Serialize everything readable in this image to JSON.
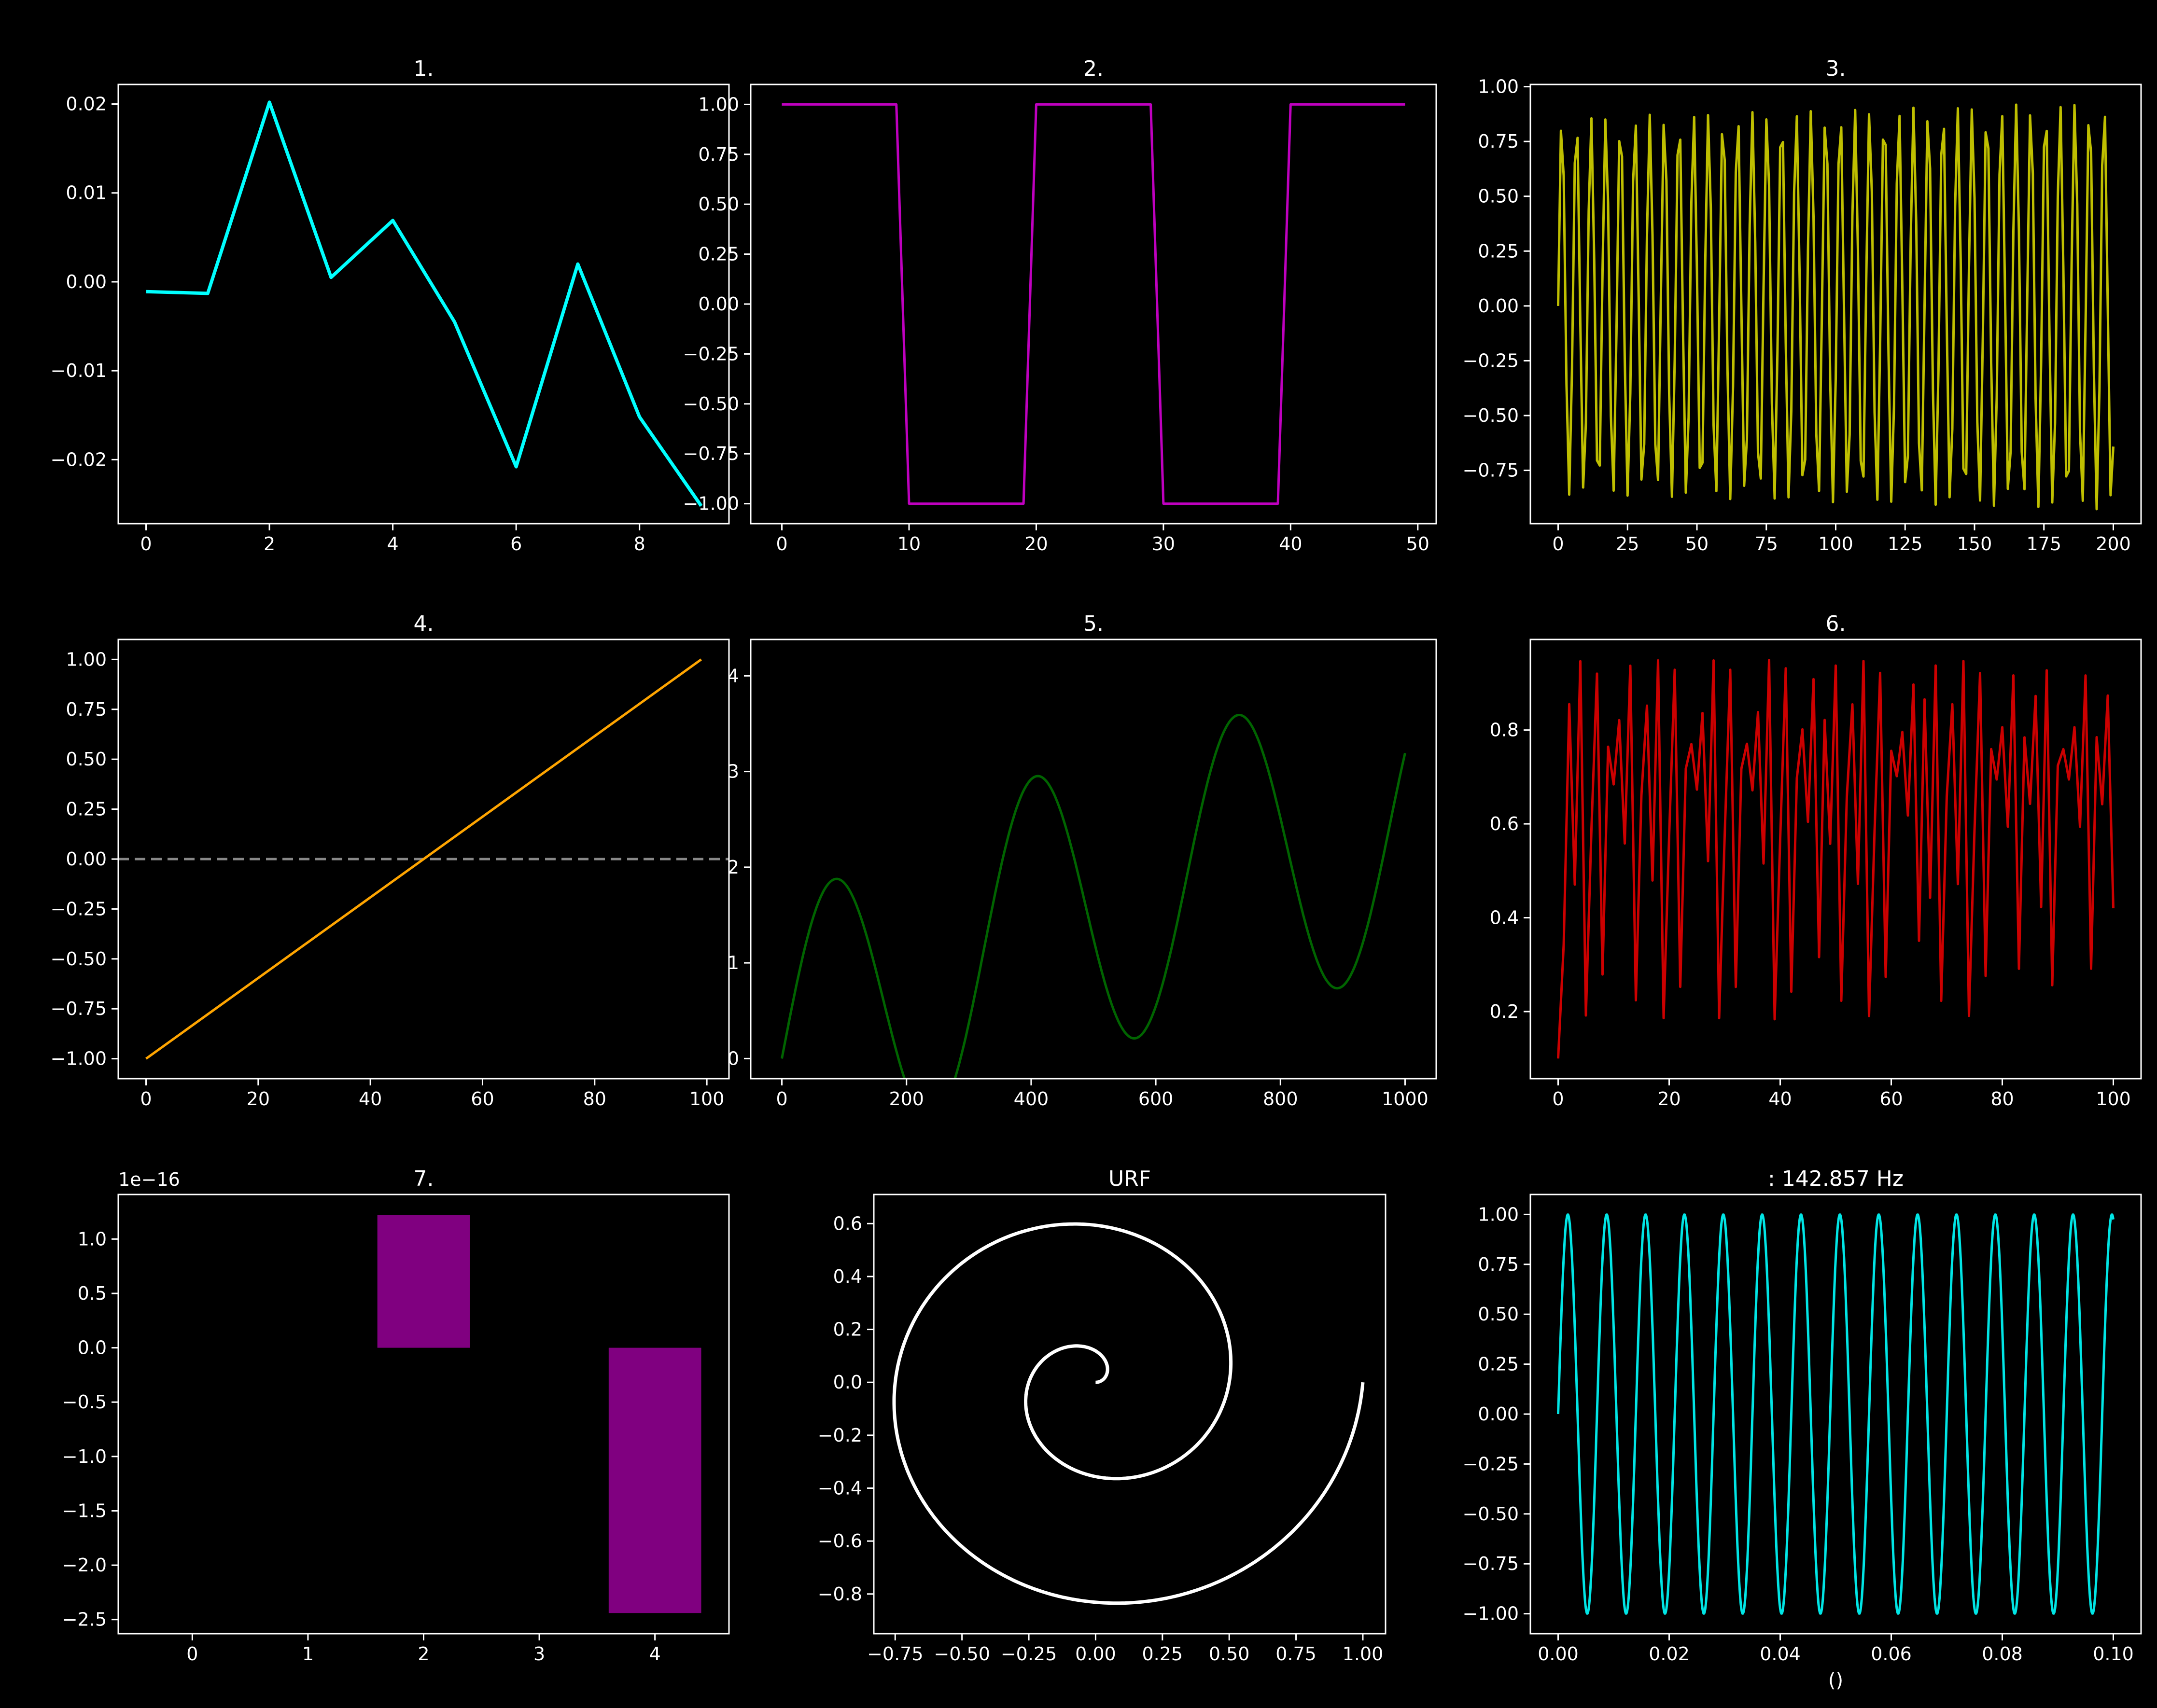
{
  "suptitle": "",
  "chart_data": [
    {
      "type": "line",
      "title": "1. ",
      "xlabel": "",
      "ylabel": "",
      "xlim": [
        -0.45,
        9.45
      ],
      "ylim": [
        -0.0272,
        0.0222
      ],
      "xticks": [
        0,
        2,
        4,
        6,
        8
      ],
      "yticks": [
        -0.02,
        -0.01,
        0.0,
        0.01,
        0.02
      ],
      "ytick_labels": [
        "−0.02",
        "−0.01",
        "0.00",
        "0.01",
        "0.02"
      ],
      "series": [
        {
          "color": "#00ffff",
          "width": 7,
          "x": [
            0,
            1,
            2,
            3,
            4,
            5,
            6,
            7,
            8,
            9
          ],
          "y": [
            -0.0011,
            -0.0013,
            0.0202,
            0.0005,
            0.0069,
            -0.0045,
            -0.0208,
            0.002,
            -0.0152,
            -0.0252
          ]
        }
      ]
    },
    {
      "type": "line",
      "title": "2. ",
      "xlim": [
        -2.45,
        51.45
      ],
      "ylim": [
        -1.1,
        1.1
      ],
      "xticks": [
        0,
        10,
        20,
        30,
        40,
        50
      ],
      "yticks": [
        -1.0,
        -0.75,
        -0.5,
        -0.25,
        0.0,
        0.25,
        0.5,
        0.75,
        1.0
      ],
      "ytick_labels": [
        "−1.00",
        "−0.75",
        "−0.50",
        "−0.25",
        "0.00",
        "0.25",
        "0.50",
        "0.75",
        "1.00"
      ],
      "series": [
        {
          "color": "#bf00bf",
          "width": 5,
          "generator": "square",
          "n": 50
        }
      ]
    },
    {
      "type": "line",
      "title": "3. ",
      "xlim": [
        -10,
        210
      ],
      "ylim": [
        -0.993,
        1.01
      ],
      "xticks": [
        0,
        25,
        50,
        75,
        100,
        125,
        150,
        175,
        200
      ],
      "yticks": [
        -0.75,
        -0.5,
        -0.25,
        0.0,
        0.25,
        0.5,
        0.75,
        1.0
      ],
      "ytick_labels": [
        "−0.75",
        "−0.50",
        "−0.25",
        "0.00",
        "0.25",
        "0.50",
        "0.75",
        "1.00"
      ],
      "series": [
        {
          "color": "#bfbf00",
          "width": 5,
          "generator": "logistic",
          "n": 200
        }
      ]
    },
    {
      "type": "line",
      "title": "4. ",
      "xlim": [
        -4.95,
        103.95
      ],
      "ylim": [
        -1.1,
        1.1
      ],
      "xticks": [
        0,
        20,
        40,
        60,
        80,
        100
      ],
      "yticks": [
        -1.0,
        -0.75,
        -0.5,
        -0.25,
        0.0,
        0.25,
        0.5,
        0.75,
        1.0
      ],
      "ytick_labels": [
        "−1.00",
        "−0.75",
        "−0.50",
        "−0.25",
        "0.00",
        "0.25",
        "0.50",
        "0.75",
        "1.00"
      ],
      "hline": {
        "y": 0,
        "color": "#888888"
      },
      "series": [
        {
          "color": "#ffa500",
          "width": 5,
          "x": [
            0,
            99
          ],
          "y": [
            -1.0,
            1.0
          ]
        }
      ]
    },
    {
      "type": "line",
      "title": "5. ",
      "xlim": [
        -50,
        1050
      ],
      "ylim": [
        -0.21,
        4.38
      ],
      "xticks": [
        0,
        200,
        400,
        600,
        800,
        1000
      ],
      "yticks": [
        0,
        1,
        2,
        3,
        4
      ],
      "ytick_labels": [
        "0",
        "1",
        "2",
        "3",
        "4"
      ],
      "series": [
        {
          "color": "#006400",
          "width": 5,
          "generator": "wave",
          "n": 1000
        }
      ]
    },
    {
      "type": "line",
      "title": "6. ",
      "xlim": [
        -5,
        105
      ],
      "ylim": [
        0.057,
        0.993
      ],
      "xticks": [
        0,
        20,
        40,
        60,
        80,
        100
      ],
      "yticks": [
        0.2,
        0.4,
        0.6,
        0.8
      ],
      "ytick_labels": [
        "0.2",
        "0.4",
        "0.6",
        "0.8"
      ],
      "series": [
        {
          "color": "#cc0000",
          "width": 5,
          "generator": "chaos",
          "n": 100
        }
      ]
    },
    {
      "type": "bar",
      "title": "7. ",
      "offset_label": "1e−16",
      "xlim": [
        -0.64,
        4.64
      ],
      "ylim": [
        -2.63,
        1.41
      ],
      "xticks": [
        0,
        1,
        2,
        3,
        4
      ],
      "yticks": [
        -2.5,
        -2.0,
        -1.5,
        -1.0,
        -0.5,
        0.0,
        0.5,
        1.0
      ],
      "ytick_labels": [
        "−2.5",
        "−2.0",
        "−1.5",
        "−1.0",
        "−0.5",
        "0.0",
        "0.5",
        "1.0"
      ],
      "categories": [
        0,
        1,
        2,
        3,
        4
      ],
      "values": [
        0,
        0,
        1.22,
        0,
        -2.44
      ],
      "bar_width": 0.8,
      "color": "#800080"
    },
    {
      "type": "line",
      "title": "URF",
      "xlim": [
        -0.83,
        1.085
      ],
      "ylim": [
        -0.95,
        0.71
      ],
      "xticks": [
        -0.75,
        -0.5,
        -0.25,
        0.0,
        0.25,
        0.5,
        0.75,
        1.0
      ],
      "xtick_labels": [
        "−0.75",
        "−0.50",
        "−0.25",
        "0.00",
        "0.25",
        "0.50",
        "0.75",
        "1.00"
      ],
      "yticks": [
        -0.8,
        -0.6,
        -0.4,
        -0.2,
        0.0,
        0.2,
        0.4,
        0.6
      ],
      "ytick_labels": [
        "−0.8",
        "−0.6",
        "−0.4",
        "−0.2",
        "0.0",
        "0.2",
        "0.4",
        "0.6"
      ],
      "series": [
        {
          "color": "#ffffff",
          "width": 7,
          "generator": "spiral",
          "n": 1000
        }
      ]
    },
    {
      "type": "line",
      "title": ": 142.857 Hz",
      "xlabel": " ()",
      "xlim": [
        -0.005,
        0.105
      ],
      "ylim": [
        -1.1,
        1.1
      ],
      "xticks": [
        0.0,
        0.02,
        0.04,
        0.06,
        0.08,
        0.1
      ],
      "xtick_labels": [
        "0.00",
        "0.02",
        "0.04",
        "0.06",
        "0.08",
        "0.10"
      ],
      "yticks": [
        -1.0,
        -0.75,
        -0.5,
        -0.25,
        0.0,
        0.25,
        0.5,
        0.75,
        1.0
      ],
      "ytick_labels": [
        "−1.00",
        "−0.75",
        "−0.50",
        "−0.25",
        "0.00",
        "0.25",
        "0.50",
        "0.75",
        "1.00"
      ],
      "series": [
        {
          "color": "#00e5e5",
          "width": 5,
          "generator": "sine",
          "n": 1000,
          "freq": 142.857
        }
      ]
    }
  ]
}
